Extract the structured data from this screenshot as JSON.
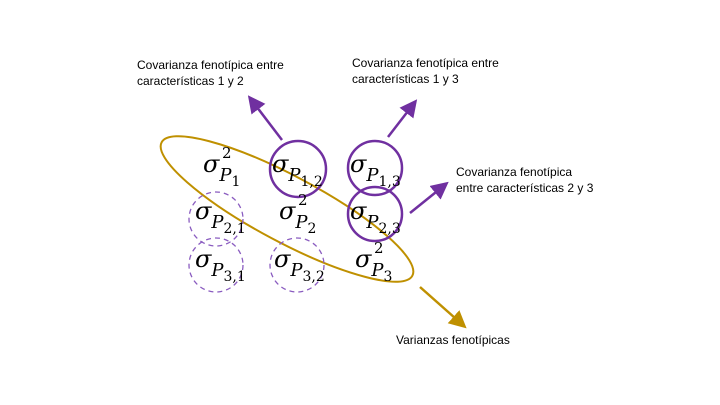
{
  "labels": {
    "cov12": [
      "Covarianza fenotípica entre",
      "características 1 y 2"
    ],
    "cov13": [
      "Covarianza fenotípica entre",
      "características 1 y 3"
    ],
    "cov23": [
      "Covarianza fenotípica",
      "entre características 2 y 3"
    ],
    "var": [
      "Varianzas fenotípicas"
    ]
  },
  "matrix": {
    "symbol": "σ",
    "letter": "P",
    "cells": {
      "c11": {
        "sub": "1",
        "sup": "2"
      },
      "c12": {
        "sub": "1,2",
        "sup": ""
      },
      "c13": {
        "sub": "1,3",
        "sup": ""
      },
      "c21": {
        "sub": "2,1",
        "sup": ""
      },
      "c22": {
        "sub": "2",
        "sup": "2"
      },
      "c23": {
        "sub": "2,3",
        "sup": ""
      },
      "c31": {
        "sub": "3,1",
        "sup": ""
      },
      "c32": {
        "sub": "3,2",
        "sup": ""
      },
      "c33": {
        "sub": "3",
        "sup": "2"
      }
    }
  },
  "colors": {
    "purple": "#7030a0",
    "dashed_purple": "#8a5cc0",
    "gold": "#bf9000",
    "text": "#000000"
  }
}
